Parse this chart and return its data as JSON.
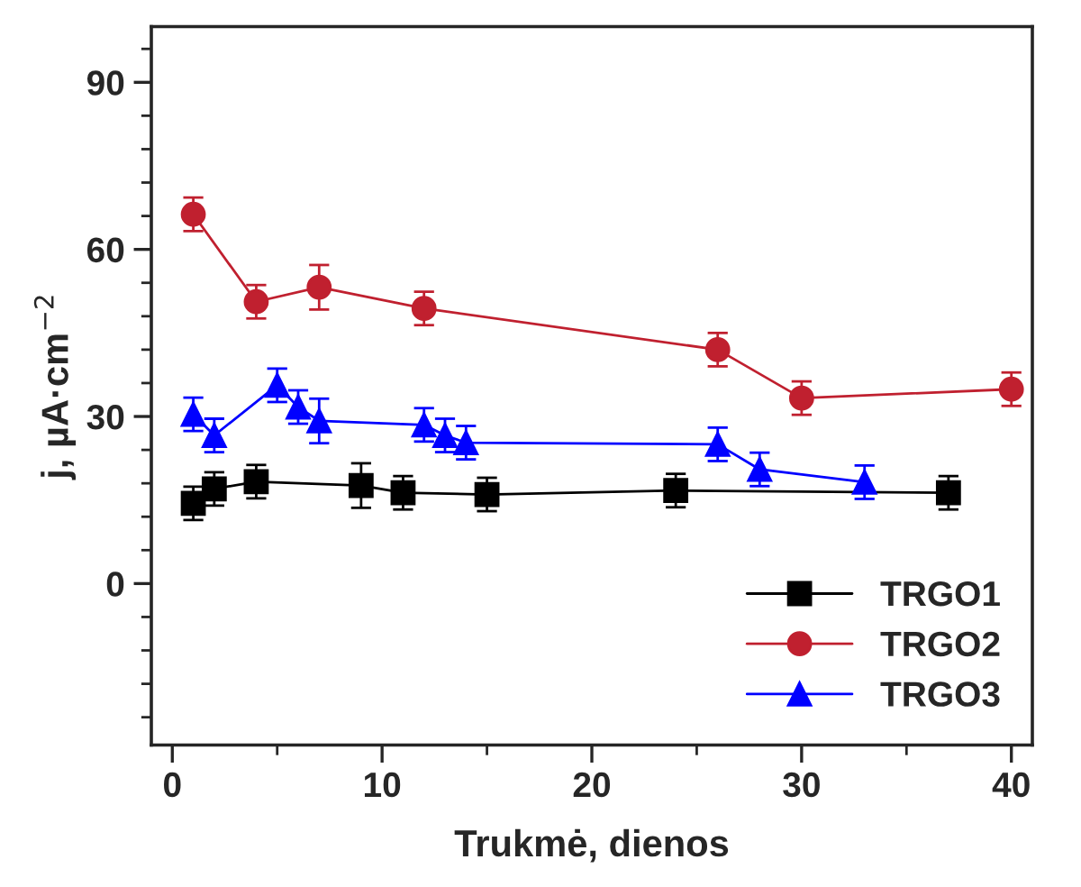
{
  "chart_data": {
    "type": "line",
    "xlabel": "Trukmė, dienos",
    "ylabel": "j, µA·cm$^{−2}$",
    "xlim": [
      -1,
      41
    ],
    "ylim": [
      -29,
      100
    ],
    "xticks": [
      0,
      10,
      20,
      30,
      40
    ],
    "yticks": [
      0,
      30,
      60,
      90
    ],
    "grid": false,
    "legend": "bottom right",
    "series": [
      {
        "name": "TRGO1",
        "color": "#000000",
        "marker": "square",
        "x": [
          1,
          2,
          4,
          9,
          11,
          15,
          24,
          37
        ],
        "values": [
          14.4,
          17,
          18.3,
          17.6,
          16.3,
          16,
          16.7,
          16.3
        ],
        "errors": [
          3,
          3,
          3,
          4,
          3,
          3,
          3,
          3
        ]
      },
      {
        "name": "TRGO2",
        "color": "#c0202f",
        "marker": "circle",
        "x": [
          1,
          4,
          7,
          12,
          26,
          30,
          40
        ],
        "values": [
          66.3,
          50.6,
          53.2,
          49.4,
          42,
          33.3,
          34.9
        ],
        "errors": [
          3,
          3,
          4,
          3,
          3,
          3,
          3
        ]
      },
      {
        "name": "TRGO3",
        "color": "#0000ff",
        "marker": "triangle",
        "x": [
          1,
          2,
          5,
          6,
          7,
          12,
          13,
          14,
          26,
          28,
          33
        ],
        "values": [
          30.4,
          26.6,
          35.6,
          31.7,
          29.2,
          28.5,
          26.6,
          25.3,
          25,
          20.5,
          18.2
        ],
        "errors": [
          3,
          3,
          3,
          3,
          4,
          3,
          3,
          3,
          3,
          3,
          3
        ]
      }
    ]
  }
}
